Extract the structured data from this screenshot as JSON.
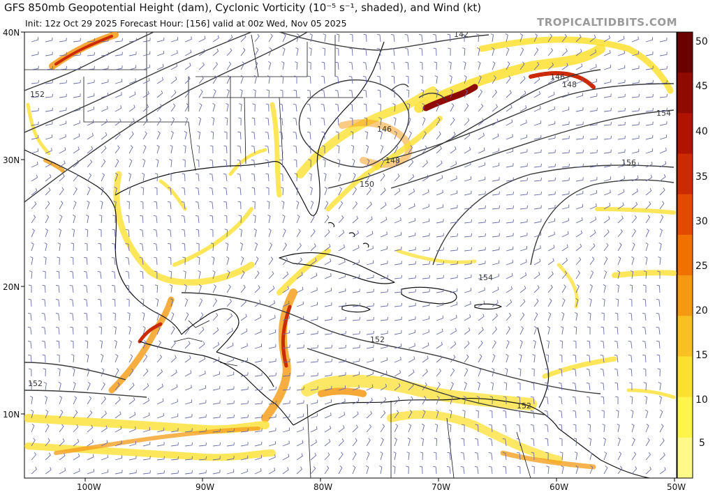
{
  "header": {
    "title": "GFS 850mb Geopotential Height (dam), Cyclonic Vorticity (10⁻⁵ s⁻¹, shaded), and Wind (kt)",
    "subtitle": "Init: 12z Oct 29 2025   Forecast Hour: [156]   valid at 00z Wed, Nov 05 2025",
    "brand": "TROPICALTIDBITS.COM"
  },
  "axes": {
    "lat_labels": [
      "40N",
      "30N",
      "20N",
      "10N"
    ],
    "lon_labels": [
      "100W",
      "90W",
      "80W",
      "70W",
      "60W",
      "50W"
    ]
  },
  "colorbar": {
    "labels": [
      "50",
      "45",
      "40",
      "35",
      "30",
      "25",
      "20",
      "15",
      "10",
      "5"
    ],
    "colors": [
      "#6b0000",
      "#8f0a00",
      "#b01400",
      "#cc2a00",
      "#e34a00",
      "#f07000",
      "#f59a10",
      "#f8c020",
      "#fbe030",
      "#fff44a",
      "#fff98a"
    ]
  },
  "contours": {
    "labels": [
      "142",
      "146",
      "148",
      "154",
      "156",
      "152",
      "146",
      "148",
      "150",
      "154",
      "152",
      "152",
      "152"
    ]
  },
  "colors": {
    "land_outline": "#111111",
    "country_lines": "#777777",
    "contour": "#3a3a3a",
    "barb": "#6a6aa8"
  }
}
